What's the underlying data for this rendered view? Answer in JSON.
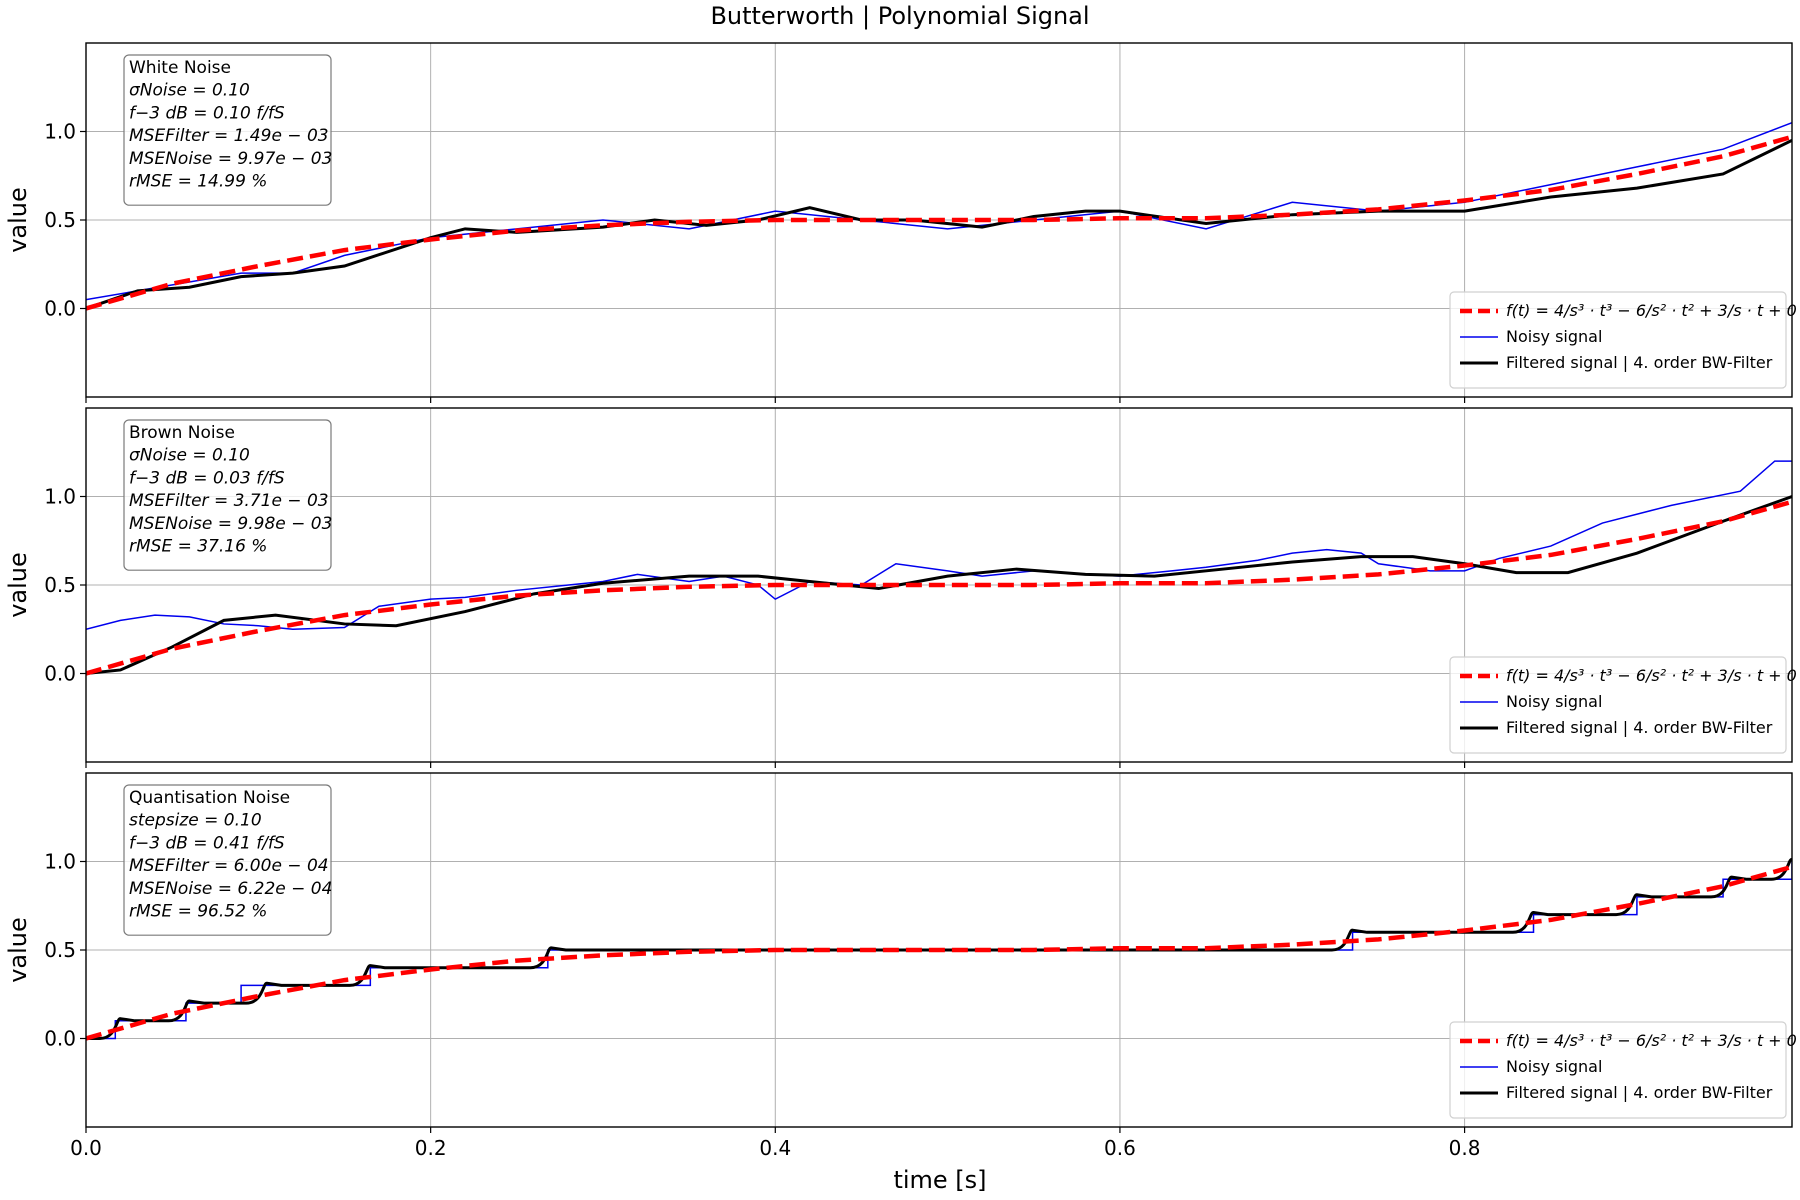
{
  "figure": {
    "title": "Butterworth | Polynomial Signal",
    "xlabel": "time [s]"
  },
  "chart_data": [
    {
      "type": "line",
      "ylabel": "value",
      "xlim": [
        0,
        0.99
      ],
      "ylim": [
        -0.5,
        1.5
      ],
      "xticks": [
        "0.0",
        "0.2",
        "0.4",
        "0.6",
        "0.8"
      ],
      "yticks": [
        "0.0",
        "0.5",
        "1.0"
      ],
      "grid": true,
      "legend_position": "lower-right",
      "info_position": "upper-left",
      "info": [
        "White Noise",
        "σNoise = 0.10",
        "f−3 dB = 0.10 f/fS",
        "MSEFilter = 1.49e − 03",
        "MSENoise = 9.97e − 03",
        "rMSE = 14.99 %"
      ],
      "noise": {
        "type": "white",
        "sigma": 0.1,
        "cutoff": 0.1,
        "mse_filter": 0.00149,
        "mse_noise": 0.00997,
        "r_mse_percent": 14.99
      },
      "series": [
        {
          "name": "f(t) = 4/s³ · t³ − 6/s² · t² + 3/s · t + 0",
          "style": "dashed",
          "color": "#ff0000",
          "x": [
            0,
            0.05,
            0.1,
            0.15,
            0.2,
            0.25,
            0.3,
            0.35,
            0.4,
            0.45,
            0.5,
            0.55,
            0.6,
            0.65,
            0.7,
            0.75,
            0.8,
            0.85,
            0.9,
            0.95,
            0.99
          ],
          "y": [
            0,
            0.14,
            0.24,
            0.33,
            0.39,
            0.44,
            0.47,
            0.49,
            0.5,
            0.5,
            0.5,
            0.5,
            0.51,
            0.51,
            0.53,
            0.56,
            0.61,
            0.67,
            0.76,
            0.86,
            0.97
          ]
        },
        {
          "name": "Noisy signal",
          "style": "solid",
          "color": "#0000ee",
          "x": [
            0,
            0.03,
            0.06,
            0.09,
            0.12,
            0.15,
            0.2,
            0.25,
            0.3,
            0.35,
            0.4,
            0.45,
            0.5,
            0.55,
            0.6,
            0.65,
            0.7,
            0.75,
            0.8,
            0.85,
            0.9,
            0.95,
            0.99
          ],
          "y": [
            0.05,
            0.1,
            0.15,
            0.2,
            0.2,
            0.3,
            0.4,
            0.45,
            0.5,
            0.45,
            0.55,
            0.5,
            0.45,
            0.5,
            0.55,
            0.45,
            0.6,
            0.55,
            0.6,
            0.7,
            0.8,
            0.9,
            1.05
          ]
        },
        {
          "name": "Filtered signal | 4. order BW-Filter",
          "style": "solid",
          "color": "#000000",
          "x": [
            0,
            0.03,
            0.06,
            0.09,
            0.12,
            0.15,
            0.2,
            0.22,
            0.25,
            0.3,
            0.33,
            0.36,
            0.39,
            0.42,
            0.45,
            0.48,
            0.52,
            0.55,
            0.58,
            0.6,
            0.65,
            0.7,
            0.75,
            0.8,
            0.85,
            0.9,
            0.95,
            0.99
          ],
          "y": [
            0,
            0.1,
            0.12,
            0.18,
            0.2,
            0.24,
            0.4,
            0.45,
            0.43,
            0.46,
            0.5,
            0.47,
            0.5,
            0.57,
            0.5,
            0.5,
            0.46,
            0.52,
            0.55,
            0.55,
            0.48,
            0.53,
            0.55,
            0.55,
            0.63,
            0.68,
            0.76,
            0.95
          ]
        }
      ]
    },
    {
      "type": "line",
      "ylabel": "value",
      "xlim": [
        0,
        0.99
      ],
      "ylim": [
        -0.5,
        1.5
      ],
      "xticks": [
        "0.0",
        "0.2",
        "0.4",
        "0.6",
        "0.8"
      ],
      "yticks": [
        "0.0",
        "0.5",
        "1.0"
      ],
      "grid": true,
      "legend_position": "lower-right",
      "info_position": "upper-left",
      "info": [
        "Brown Noise",
        "σNoise = 0.10",
        "f−3 dB = 0.03 f/fS",
        "MSEFilter = 3.71e − 03",
        "MSENoise = 9.98e − 03",
        "rMSE = 37.16 %"
      ],
      "noise": {
        "type": "brown",
        "sigma": 0.1,
        "cutoff": 0.03,
        "mse_filter": 0.00371,
        "mse_noise": 0.00998,
        "r_mse_percent": 37.16
      },
      "series": [
        {
          "name": "f(t) = 4/s³ · t³ − 6/s² · t² + 3/s · t + 0",
          "style": "dashed",
          "color": "#ff0000",
          "x": [
            0,
            0.05,
            0.1,
            0.15,
            0.2,
            0.25,
            0.3,
            0.35,
            0.4,
            0.45,
            0.5,
            0.55,
            0.6,
            0.65,
            0.7,
            0.75,
            0.8,
            0.85,
            0.9,
            0.95,
            0.99
          ],
          "y": [
            0,
            0.14,
            0.24,
            0.33,
            0.39,
            0.44,
            0.47,
            0.49,
            0.5,
            0.5,
            0.5,
            0.5,
            0.51,
            0.51,
            0.53,
            0.56,
            0.61,
            0.67,
            0.76,
            0.86,
            0.97
          ]
        },
        {
          "name": "Noisy signal",
          "style": "solid",
          "color": "#0000ee",
          "x": [
            0,
            0.02,
            0.04,
            0.06,
            0.08,
            0.1,
            0.12,
            0.15,
            0.17,
            0.2,
            0.22,
            0.25,
            0.28,
            0.3,
            0.32,
            0.35,
            0.37,
            0.39,
            0.4,
            0.42,
            0.45,
            0.47,
            0.5,
            0.52,
            0.55,
            0.58,
            0.6,
            0.63,
            0.65,
            0.68,
            0.7,
            0.72,
            0.74,
            0.75,
            0.78,
            0.8,
            0.82,
            0.85,
            0.88,
            0.92,
            0.96,
            0.98,
            0.99
          ],
          "y": [
            0.25,
            0.3,
            0.33,
            0.32,
            0.28,
            0.27,
            0.25,
            0.26,
            0.38,
            0.42,
            0.43,
            0.47,
            0.5,
            0.52,
            0.56,
            0.52,
            0.55,
            0.5,
            0.42,
            0.52,
            0.5,
            0.62,
            0.58,
            0.55,
            0.58,
            0.56,
            0.55,
            0.58,
            0.6,
            0.64,
            0.68,
            0.7,
            0.68,
            0.62,
            0.58,
            0.58,
            0.65,
            0.72,
            0.85,
            0.95,
            1.03,
            1.2,
            1.2
          ]
        },
        {
          "name": "Filtered signal | 4. order BW-Filter",
          "style": "solid",
          "color": "#000000",
          "x": [
            0,
            0.02,
            0.05,
            0.08,
            0.11,
            0.15,
            0.18,
            0.22,
            0.26,
            0.3,
            0.35,
            0.39,
            0.42,
            0.46,
            0.5,
            0.54,
            0.58,
            0.62,
            0.66,
            0.7,
            0.74,
            0.77,
            0.8,
            0.83,
            0.86,
            0.9,
            0.95,
            0.99
          ],
          "y": [
            0,
            0.02,
            0.15,
            0.3,
            0.33,
            0.28,
            0.27,
            0.35,
            0.45,
            0.51,
            0.55,
            0.55,
            0.52,
            0.48,
            0.55,
            0.59,
            0.56,
            0.55,
            0.59,
            0.63,
            0.66,
            0.66,
            0.62,
            0.57,
            0.57,
            0.68,
            0.86,
            1.0
          ]
        }
      ]
    },
    {
      "type": "line",
      "ylabel": "value",
      "xlim": [
        0,
        0.99
      ],
      "ylim": [
        -0.5,
        1.5
      ],
      "xticks": [
        "0.0",
        "0.2",
        "0.4",
        "0.6",
        "0.8"
      ],
      "yticks": [
        "0.0",
        "0.5",
        "1.0"
      ],
      "grid": true,
      "legend_position": "lower-right",
      "info_position": "upper-left",
      "info": [
        "Quantisation Noise",
        "stepsize = 0.10",
        "f−3 dB = 0.41 f/fS",
        "MSEFilter = 6.00e − 04",
        "MSENoise = 6.22e − 04",
        "rMSE = 96.52 %"
      ],
      "noise": {
        "type": "quantisation",
        "stepsize": 0.1,
        "cutoff": 0.41,
        "mse_filter": 0.0006,
        "mse_noise": 0.000622,
        "r_mse_percent": 96.52
      },
      "series": [
        {
          "name": "f(t) = 4/s³ · t³ − 6/s² · t² + 3/s · t + 0",
          "style": "dashed",
          "color": "#ff0000",
          "x": [
            0,
            0.05,
            0.1,
            0.15,
            0.2,
            0.25,
            0.3,
            0.35,
            0.4,
            0.45,
            0.5,
            0.55,
            0.6,
            0.65,
            0.7,
            0.75,
            0.8,
            0.85,
            0.9,
            0.95,
            0.99
          ],
          "y": [
            0,
            0.14,
            0.24,
            0.33,
            0.39,
            0.44,
            0.47,
            0.49,
            0.5,
            0.5,
            0.5,
            0.5,
            0.51,
            0.51,
            0.53,
            0.56,
            0.61,
            0.67,
            0.76,
            0.86,
            0.97
          ]
        },
        {
          "name": "Noisy signal",
          "style": "step",
          "color": "#0000ee",
          "x": [
            0,
            0.017,
            0.04,
            0.058,
            0.09,
            0.165,
            0.268,
            0.735,
            0.84,
            0.9,
            0.95,
            0.99
          ],
          "y": [
            0,
            0.1,
            0.1,
            0.2,
            0.3,
            0.4,
            0.5,
            0.6,
            0.7,
            0.8,
            0.9,
            1.0
          ]
        },
        {
          "name": "Filtered signal | 4. order BW-Filter",
          "style": "step-smooth",
          "color": "#000000",
          "x": [
            0,
            0.02,
            0.06,
            0.105,
            0.165,
            0.27,
            0.735,
            0.84,
            0.9,
            0.955,
            0.99
          ],
          "y": [
            0,
            0.1,
            0.2,
            0.3,
            0.4,
            0.5,
            0.6,
            0.7,
            0.8,
            0.9,
            1.0
          ]
        }
      ]
    }
  ]
}
